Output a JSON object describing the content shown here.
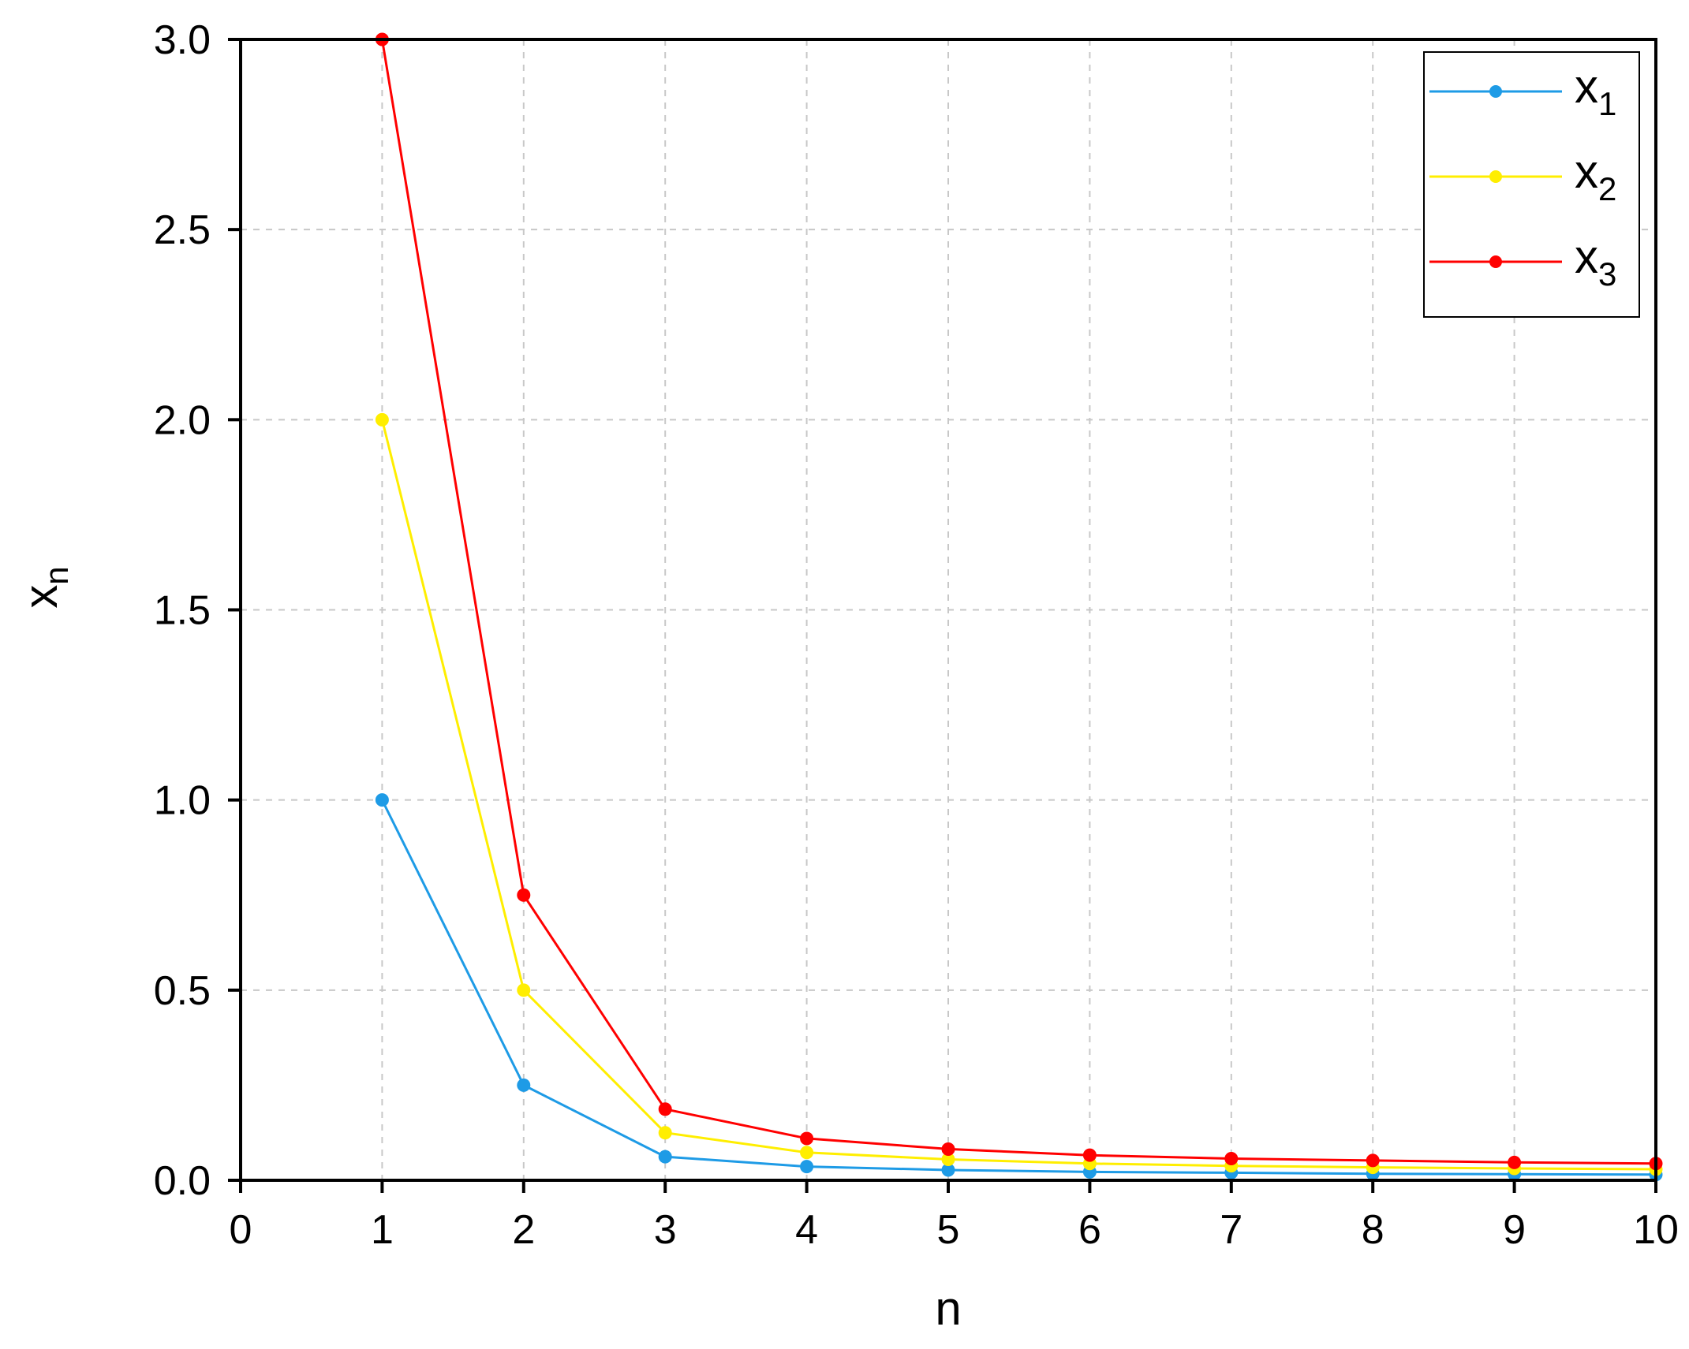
{
  "chart_data": {
    "type": "line",
    "title": "",
    "xlabel": "n",
    "ylabel": {
      "base": "x",
      "sub": "n"
    },
    "xlim": [
      0,
      10
    ],
    "ylim": [
      0,
      3.0
    ],
    "xticks": [
      "0",
      "1",
      "2",
      "3",
      "4",
      "5",
      "6",
      "7",
      "8",
      "9",
      "10"
    ],
    "yticks": [
      "0.0",
      "0.5",
      "1.0",
      "1.5",
      "2.0",
      "2.5",
      "3.0"
    ],
    "grid": true,
    "legend_position": "top-right",
    "x": [
      1,
      2,
      3,
      4,
      5,
      6,
      7,
      8,
      9,
      10
    ],
    "series": [
      {
        "name": "x",
        "sub": "1",
        "color": "#1e9be6",
        "values": [
          1.0,
          0.25,
          0.062,
          0.036,
          0.027,
          0.022,
          0.02,
          0.017,
          0.016,
          0.015
        ]
      },
      {
        "name": "x",
        "sub": "2",
        "color": "#ffee00",
        "values": [
          2.0,
          0.5,
          0.125,
          0.073,
          0.055,
          0.044,
          0.038,
          0.034,
          0.031,
          0.029
        ]
      },
      {
        "name": "x",
        "sub": "3",
        "color": "#ff0000",
        "values": [
          3.0,
          0.75,
          0.187,
          0.11,
          0.082,
          0.066,
          0.057,
          0.052,
          0.047,
          0.044
        ]
      }
    ]
  }
}
